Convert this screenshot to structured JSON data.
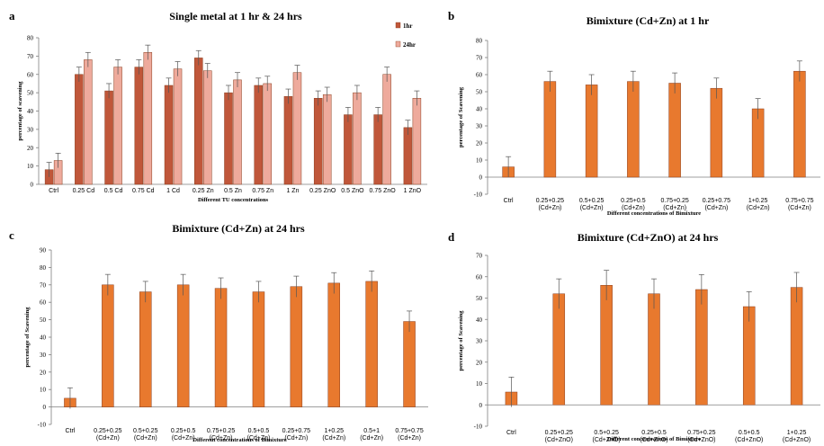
{
  "chart_data": [
    {
      "panel": "a",
      "type": "bar",
      "title": "Single metal at 1 hr & 24 hrs",
      "xlabel": "Different TU  concentrations",
      "ylabel": "percentage of scavening",
      "ylim": [
        0,
        80
      ],
      "yticks": [
        0,
        10,
        20,
        30,
        40,
        50,
        60,
        70,
        80
      ],
      "categories": [
        "Ctrl",
        "0.25 Cd",
        "0.5 Cd",
        "0.75 Cd",
        "1 Cd",
        "0.25 Zn",
        "0.5 Zn",
        "0.75 Zn",
        "1 Zn",
        "0.25 ZnO",
        "0.5 ZnO",
        "0.75 ZnO",
        "1 ZnO"
      ],
      "series": [
        {
          "name": "1hr",
          "color": "#c0573a",
          "values": [
            8,
            60,
            51,
            64,
            54,
            69,
            50,
            54,
            48,
            47,
            38,
            38,
            31
          ],
          "errors": [
            4,
            4,
            4,
            4,
            4,
            4,
            4,
            4,
            4,
            4,
            4,
            4,
            4
          ]
        },
        {
          "name": "24hr",
          "color": "#eeaa9c",
          "values": [
            13,
            68,
            64,
            72,
            63,
            62,
            57,
            55,
            61,
            49,
            50,
            60,
            47
          ],
          "errors": [
            4,
            4,
            4,
            4,
            4,
            4,
            4,
            4,
            4,
            4,
            4,
            4,
            4
          ]
        }
      ],
      "legend": "top-right",
      "grid": false
    },
    {
      "panel": "b",
      "type": "bar",
      "title": "Bimixture (Cd+Zn) at 1 hr",
      "xlabel": "Different concentrations of Bimixture",
      "ylabel": "percentage of Scavening",
      "ylim": [
        -10,
        80
      ],
      "yticks": [
        -10,
        0,
        10,
        20,
        30,
        40,
        50,
        60,
        70,
        80
      ],
      "categories": [
        [
          "Ctrl"
        ],
        [
          "0.25+0.25",
          "(Cd+Zn)"
        ],
        [
          "0.5+0.25",
          "(Cd+Zn)"
        ],
        [
          "0.25+0.5",
          "(Cd+Zn)"
        ],
        [
          "0.75+0.25",
          "(Cd+Zn)"
        ],
        [
          "0.25+0.75",
          "(Cd+Zn)"
        ],
        [
          "1+0.25",
          "(Cd+Zn)"
        ],
        [
          "0.75+0.75",
          "(Cd+Zn)"
        ]
      ],
      "series": [
        {
          "color": "#e8792e",
          "values": [
            6,
            56,
            54,
            56,
            55,
            52,
            40,
            62
          ],
          "errors": [
            6,
            6,
            6,
            6,
            6,
            6,
            6,
            6
          ]
        }
      ],
      "grid": false
    },
    {
      "panel": "c",
      "type": "bar",
      "title": "Bimixture (Cd+Zn)  at 24 hrs",
      "xlabel": "Different concentrations of Bimixture",
      "ylabel": "percentage of Scavening",
      "ylim": [
        -10,
        90
      ],
      "yticks": [
        -10,
        0,
        10,
        20,
        30,
        40,
        50,
        60,
        70,
        80,
        90
      ],
      "categories": [
        [
          "Ctrl"
        ],
        [
          "0.25+0.25",
          "(Cd+Zn)"
        ],
        [
          "0.5+0.25",
          "(Cd+Zn)"
        ],
        [
          "0.25+0.5",
          "(Cd+Zn)"
        ],
        [
          "0.75+0.25",
          "(Cd+Zn)"
        ],
        [
          "0.5+0.5",
          "(Cd+Zn)"
        ],
        [
          "0.25+0.75",
          "(Cd+Zn)"
        ],
        [
          "1+0.25",
          "(Cd+Zn)"
        ],
        [
          "0.5+1",
          "(Cd+Zn)"
        ],
        [
          "0.75+0.75",
          "(Cd+Zn)"
        ]
      ],
      "series": [
        {
          "color": "#e8792e",
          "values": [
            5,
            70,
            66,
            70,
            68,
            66,
            69,
            71,
            72,
            49
          ],
          "errors": [
            6,
            6,
            6,
            6,
            6,
            6,
            6,
            6,
            6,
            6
          ]
        }
      ],
      "grid": false
    },
    {
      "panel": "d",
      "type": "bar",
      "title": "Bimixture (Cd+ZnO) at 24 hrs",
      "xlabel": "Different concentrations of Bimixture",
      "ylabel": "percentage of Scavening",
      "ylim": [
        -10,
        70
      ],
      "yticks": [
        -10,
        0,
        10,
        20,
        30,
        40,
        50,
        60,
        70
      ],
      "categories": [
        [
          "Ctrl"
        ],
        [
          "0.25+0.25",
          "(Cd+ZnO)"
        ],
        [
          "0.5+0.25",
          "(Cd+ZnO)"
        ],
        [
          "0.25+0.5",
          "(Cd+ZnO)"
        ],
        [
          "0.75+0.25",
          "(Cd+ZnO)"
        ],
        [
          "0.5+0.5",
          "(Cd+ZnO)"
        ],
        [
          "1+0.25",
          "(Cd+ZnO)"
        ]
      ],
      "series": [
        {
          "color": "#e8792e",
          "values": [
            6,
            52,
            56,
            52,
            54,
            46,
            55
          ],
          "errors": [
            7,
            7,
            7,
            7,
            7,
            7,
            7
          ]
        }
      ],
      "grid": false
    }
  ]
}
